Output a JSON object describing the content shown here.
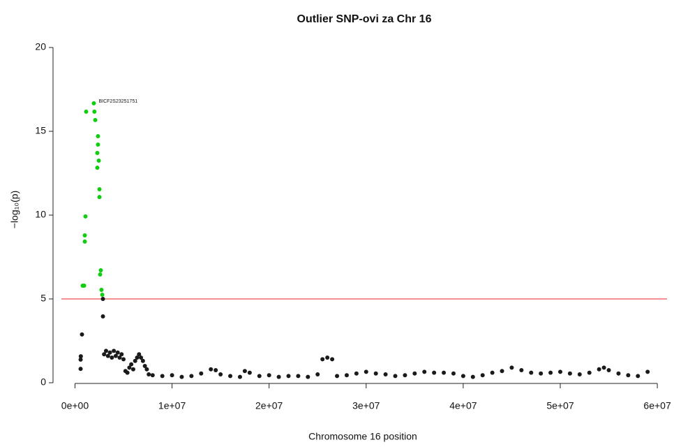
{
  "chart_data": {
    "type": "scatter",
    "title": "Outlier SNP-ovi za Chr 16",
    "x_label": "Chromosome 16 position",
    "y_label": "−log₁₀(p)",
    "annotation": "BICF2S23251751",
    "xlim": [
      -1400000,
      61000000
    ],
    "ylim": [
      -0.5,
      20.5
    ],
    "xticks": [
      {
        "value": 0,
        "label": "0e+00"
      },
      {
        "value": 10000000,
        "label": "1e+07"
      },
      {
        "value": 20000000,
        "label": "2e+07"
      },
      {
        "value": 30000000,
        "label": "3e+07"
      },
      {
        "value": 40000000,
        "label": "4e+07"
      },
      {
        "value": 50000000,
        "label": "5e+07"
      },
      {
        "value": 60000000,
        "label": "6e+07"
      }
    ],
    "yticks": [
      0,
      5,
      10,
      15,
      20
    ],
    "threshold": 5,
    "threshold_color": "#e8202a",
    "grid": false,
    "series": [
      {
        "color": "#1a1a1a",
        "x": [
          580000,
          580000,
          600000,
          720000,
          2880000,
          2880000,
          3000000,
          3200000,
          3400000,
          3600000,
          3800000,
          4000000,
          4200000,
          4400000,
          4600000,
          4800000,
          5000000,
          5200000,
          5400000,
          5600000,
          5800000,
          6000000,
          6200000,
          6400000,
          6600000,
          6800000,
          7000000,
          7200000,
          7400000,
          7600000,
          8000000,
          9000000,
          10000000,
          11000000,
          12000000,
          13000000,
          14000000,
          14500000,
          15000000,
          16000000,
          17000000,
          17500000,
          18000000,
          19000000,
          20000000,
          21000000,
          22000000,
          23000000,
          24000000,
          25000000,
          25500000,
          26000000,
          26500000,
          27000000,
          28000000,
          29000000,
          30000000,
          31000000,
          32000000,
          33000000,
          34000000,
          35000000,
          36000000,
          37000000,
          38000000,
          39000000,
          40000000,
          41000000,
          42000000,
          43000000,
          44000000,
          45000000,
          46000000,
          47000000,
          48000000,
          49000000,
          50000000,
          51000000,
          52000000,
          53000000,
          54000000,
          54500000,
          55000000,
          56000000,
          57000000,
          58000000,
          59000000
        ],
        "values": [
          0.83,
          1.38,
          1.58,
          2.88,
          5.0,
          3.96,
          1.7,
          1.9,
          1.6,
          1.8,
          1.5,
          1.9,
          1.6,
          1.8,
          1.5,
          1.7,
          1.4,
          0.7,
          0.6,
          0.9,
          1.1,
          0.8,
          1.3,
          1.5,
          1.7,
          1.5,
          1.3,
          1.0,
          0.8,
          0.5,
          0.45,
          0.4,
          0.45,
          0.35,
          0.4,
          0.55,
          0.8,
          0.75,
          0.5,
          0.4,
          0.35,
          0.7,
          0.6,
          0.4,
          0.45,
          0.35,
          0.4,
          0.4,
          0.35,
          0.5,
          1.4,
          1.5,
          1.4,
          0.4,
          0.45,
          0.55,
          0.65,
          0.55,
          0.5,
          0.4,
          0.45,
          0.55,
          0.65,
          0.6,
          0.6,
          0.55,
          0.4,
          0.35,
          0.45,
          0.6,
          0.7,
          0.9,
          0.75,
          0.6,
          0.55,
          0.6,
          0.65,
          0.55,
          0.5,
          0.6,
          0.8,
          0.9,
          0.75,
          0.55,
          0.45,
          0.4,
          0.65
        ]
      },
      {
        "color": "#11cc11",
        "x": [
          1150000,
          1940000,
          2000000,
          2090000,
          2370000,
          2370000,
          2300000,
          2450000,
          2300000,
          2520000,
          2520000,
          1080000,
          1010000,
          1010000,
          790000,
          940000,
          2660000,
          2590000,
          2730000,
          2810000
        ],
        "values": [
          16.17,
          16.67,
          16.17,
          15.67,
          14.71,
          14.21,
          13.71,
          13.25,
          12.83,
          11.54,
          11.08,
          9.92,
          8.79,
          8.42,
          5.79,
          5.79,
          6.71,
          6.46,
          5.54,
          5.25
        ]
      }
    ]
  }
}
